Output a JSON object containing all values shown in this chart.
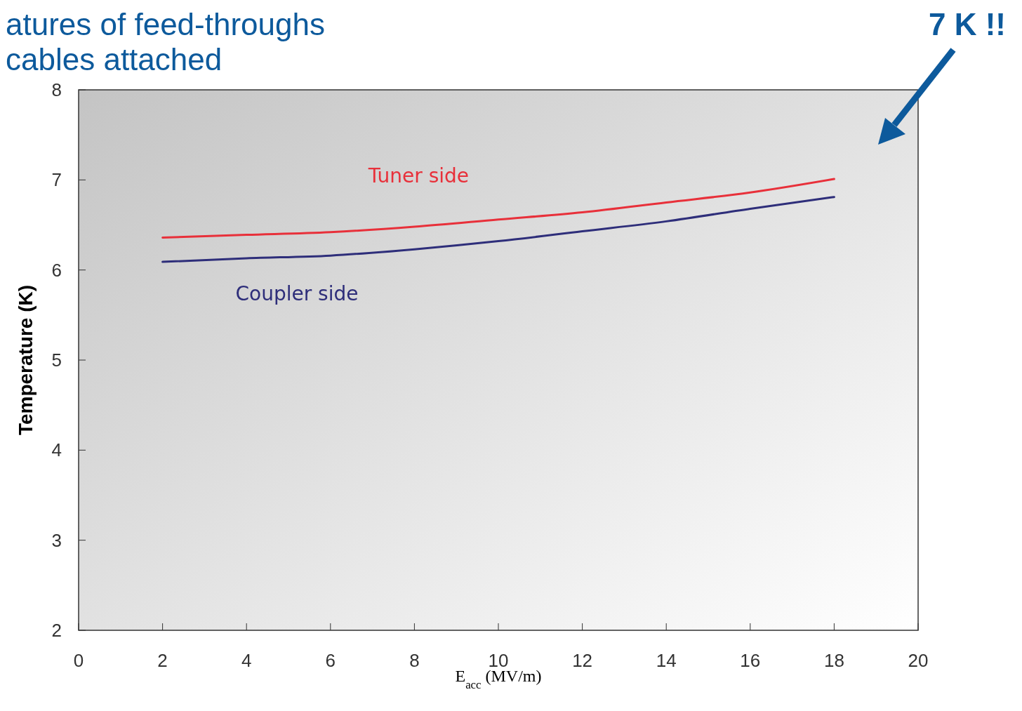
{
  "chart_data": {
    "type": "line",
    "title": "atures of feed-throughs",
    "subtitle": "cables attached",
    "xlabel": "E$_{acc}$ (MV/m)",
    "ylabel": "Temperature (K)",
    "annotations": [
      "7 K !!"
    ],
    "x": [
      2,
      4,
      6,
      8,
      10,
      12,
      14,
      16,
      18
    ],
    "series": [
      {
        "name": "Tuner side",
        "color": "#e8303a",
        "values": [
          6.36,
          6.39,
          6.42,
          6.48,
          6.56,
          6.64,
          6.75,
          6.86,
          7.01
        ]
      },
      {
        "name": "Coupler side",
        "color": "#2e2e7a",
        "values": [
          6.09,
          6.13,
          6.16,
          6.23,
          6.32,
          6.43,
          6.54,
          6.68,
          6.81
        ]
      }
    ],
    "xlim": [
      0,
      20
    ],
    "xticks": [
      0,
      2,
      4,
      6,
      8,
      10,
      12,
      14,
      16,
      18,
      20
    ],
    "ylim": [
      2,
      8
    ],
    "yticks": [
      2,
      3,
      4,
      5,
      6,
      7,
      8
    ],
    "grid": false,
    "legend": false,
    "marker": "none",
    "line_style": "solid"
  }
}
